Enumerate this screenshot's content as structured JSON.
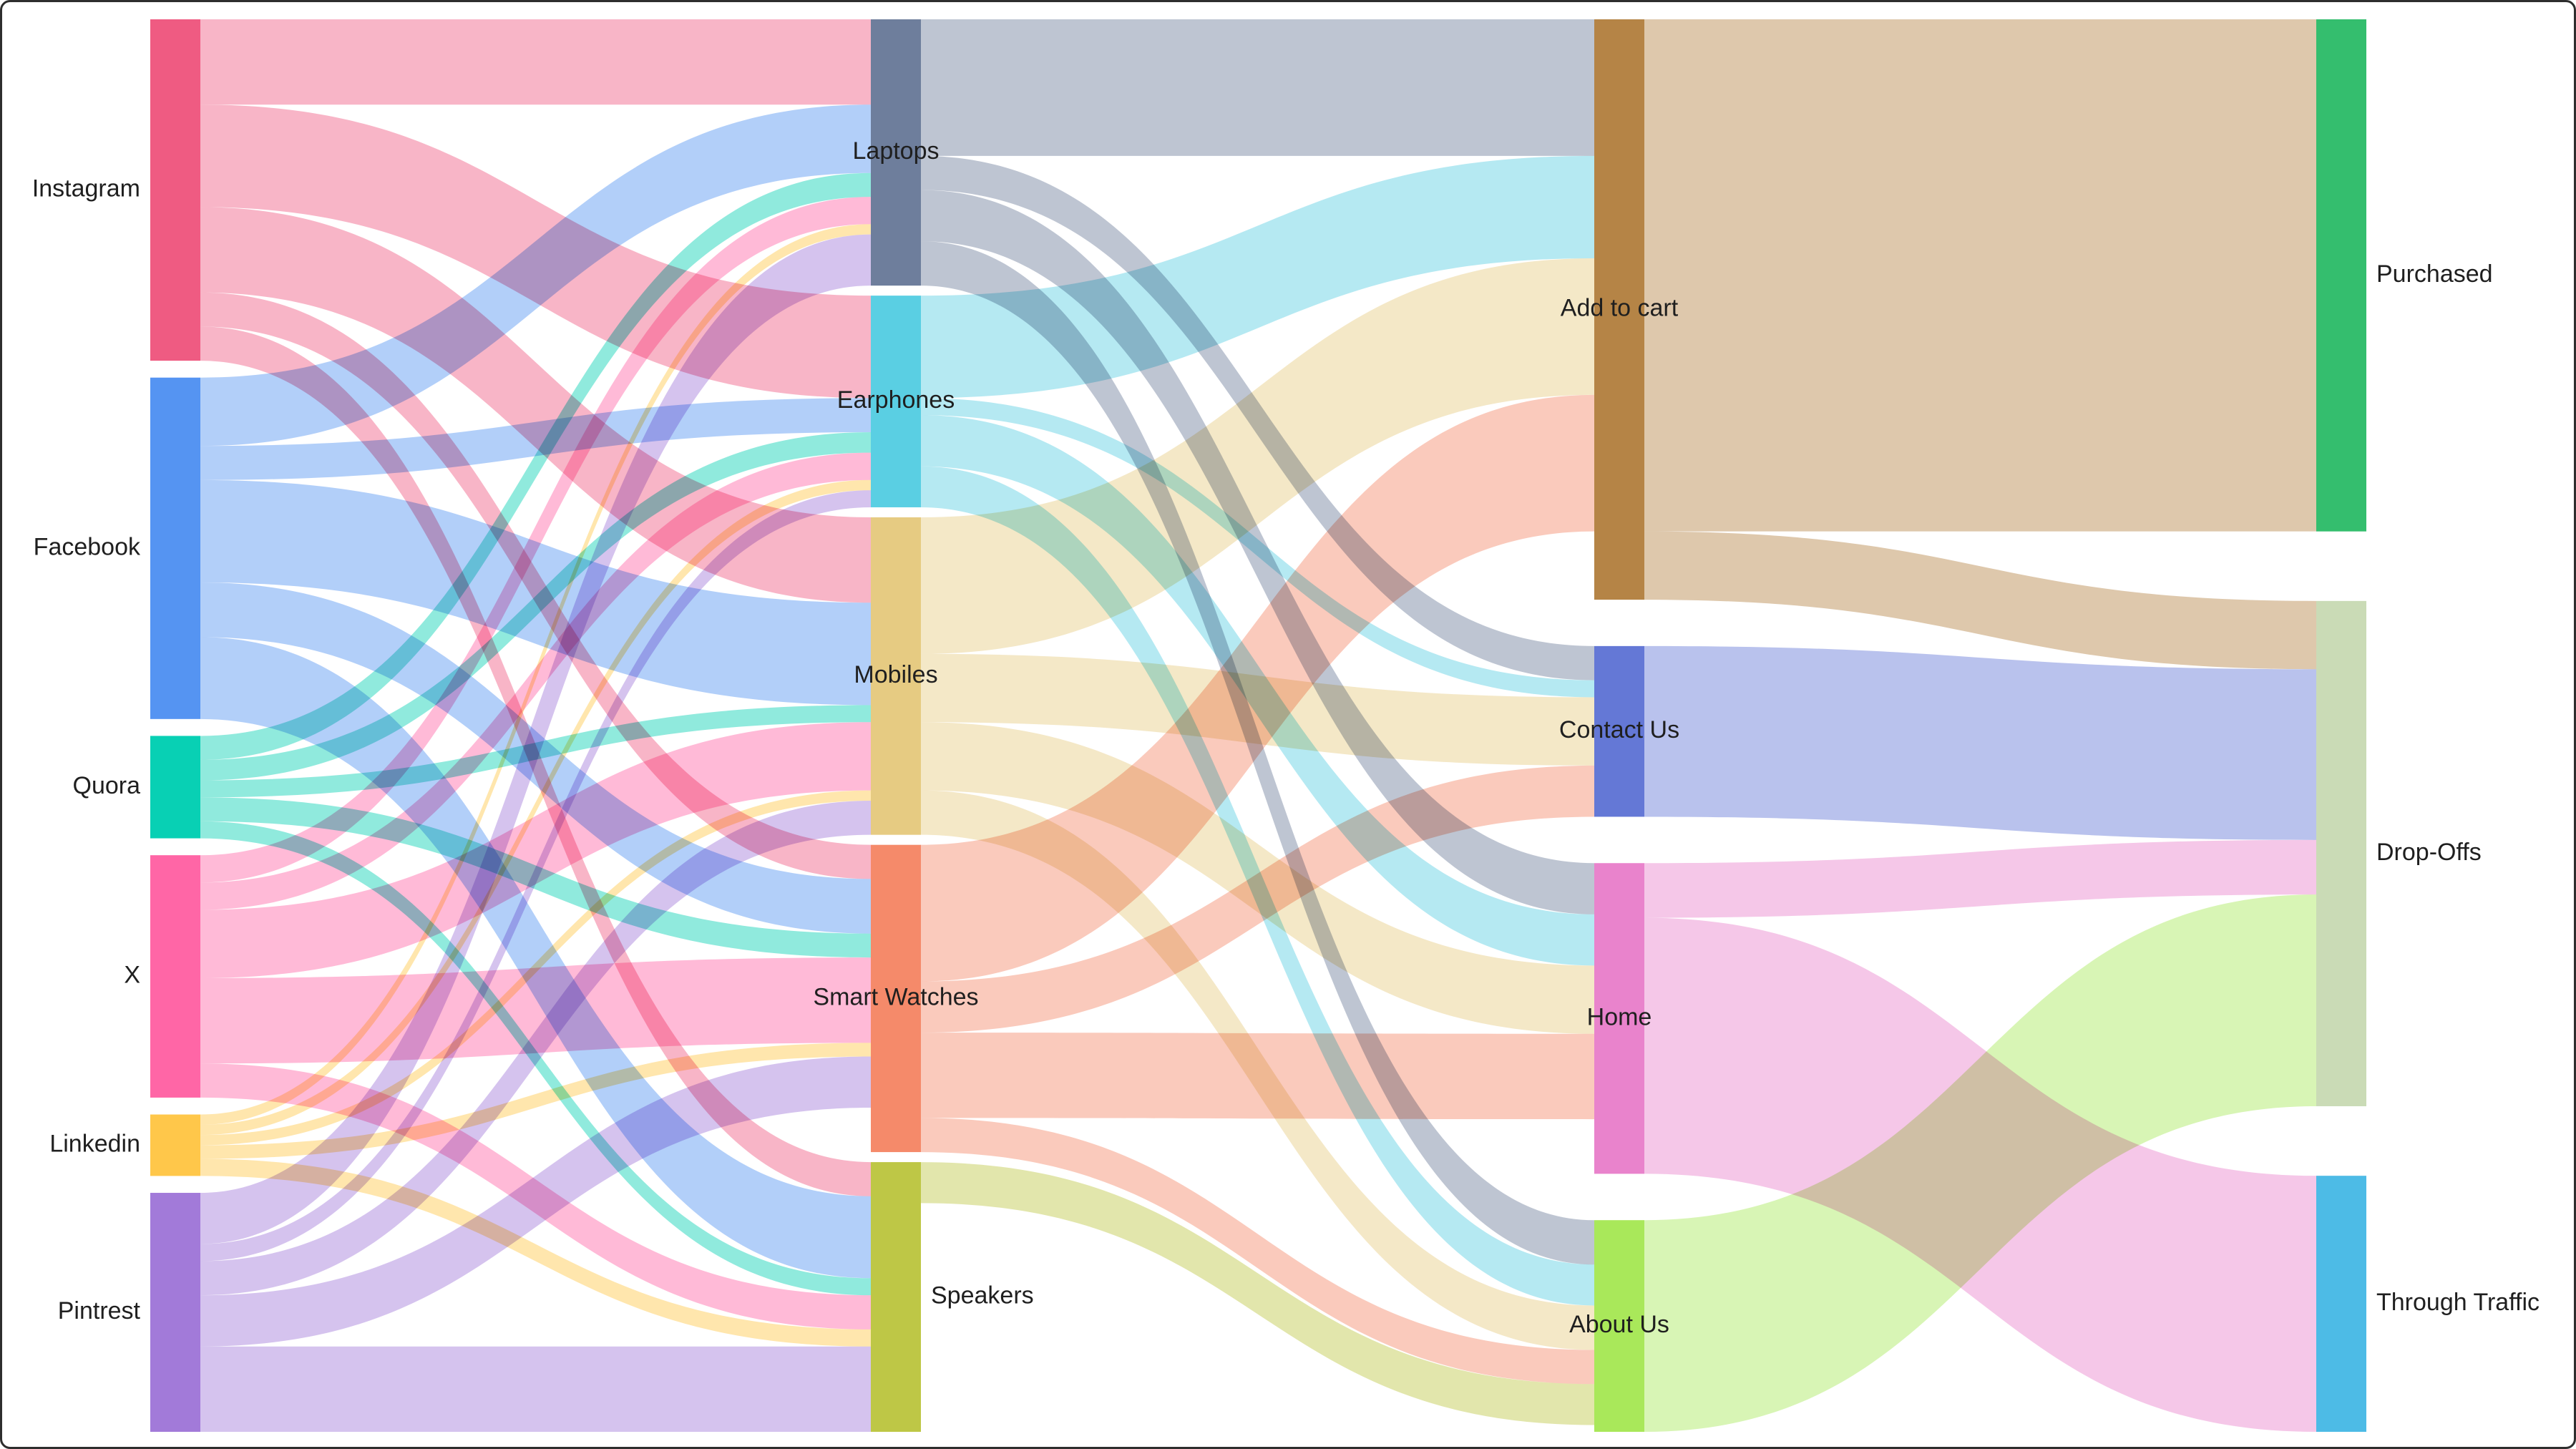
{
  "chart_data": {
    "type": "sankey",
    "title": "",
    "nodes": [
      {
        "id": "instagram",
        "name": "Instagram",
        "column": 0,
        "color": "#EF5B82"
      },
      {
        "id": "facebook",
        "name": "Facebook",
        "column": 0,
        "color": "#5594F2"
      },
      {
        "id": "quora",
        "name": "Quora",
        "column": 0,
        "color": "#08D0B4"
      },
      {
        "id": "x",
        "name": "X",
        "column": 0,
        "color": "#FF66A6"
      },
      {
        "id": "linkedin",
        "name": "Linkedin",
        "column": 0,
        "color": "#FFC74A"
      },
      {
        "id": "pintrest",
        "name": "Pintrest",
        "column": 0,
        "color": "#A27AD9"
      },
      {
        "id": "laptops",
        "name": "Laptops",
        "column": 1,
        "color": "#6E7E9C"
      },
      {
        "id": "earphones",
        "name": "Earphones",
        "column": 1,
        "color": "#5ACFE3"
      },
      {
        "id": "mobiles",
        "name": "Mobiles",
        "column": 1,
        "color": "#E6CB82"
      },
      {
        "id": "smartwatches",
        "name": "Smart Watches",
        "column": 1,
        "color": "#F58A6A"
      },
      {
        "id": "speakers",
        "name": "Speakers",
        "column": 1,
        "color": "#BEC746"
      },
      {
        "id": "addtocart",
        "name": "Add to cart",
        "column": 2,
        "color": "#B58446"
      },
      {
        "id": "contactus",
        "name": "Contact Us",
        "column": 2,
        "color": "#6478D6"
      },
      {
        "id": "home",
        "name": "Home",
        "column": 2,
        "color": "#E983CC"
      },
      {
        "id": "aboutus",
        "name": "About Us",
        "column": 2,
        "color": "#A9E85A"
      },
      {
        "id": "purchased",
        "name": "Purchased",
        "column": 3,
        "color": "#34BE6E"
      },
      {
        "id": "dropoffs",
        "name": "Drop-Offs",
        "column": 3,
        "color": "#CADBB6"
      },
      {
        "id": "throughtraffic",
        "name": "Through Traffic",
        "column": 3,
        "color": "#4DBBE6"
      }
    ],
    "links": [
      {
        "source": "instagram",
        "target": "laptops",
        "value": 25
      },
      {
        "source": "instagram",
        "target": "earphones",
        "value": 30
      },
      {
        "source": "instagram",
        "target": "mobiles",
        "value": 25
      },
      {
        "source": "instagram",
        "target": "smartwatches",
        "value": 10
      },
      {
        "source": "instagram",
        "target": "speakers",
        "value": 10
      },
      {
        "source": "facebook",
        "target": "laptops",
        "value": 20
      },
      {
        "source": "facebook",
        "target": "earphones",
        "value": 10
      },
      {
        "source": "facebook",
        "target": "mobiles",
        "value": 30
      },
      {
        "source": "facebook",
        "target": "smartwatches",
        "value": 16
      },
      {
        "source": "facebook",
        "target": "speakers",
        "value": 24
      },
      {
        "source": "quora",
        "target": "laptops",
        "value": 7
      },
      {
        "source": "quora",
        "target": "earphones",
        "value": 6
      },
      {
        "source": "quora",
        "target": "mobiles",
        "value": 5
      },
      {
        "source": "quora",
        "target": "smartwatches",
        "value": 7
      },
      {
        "source": "quora",
        "target": "speakers",
        "value": 5
      },
      {
        "source": "x",
        "target": "laptops",
        "value": 8
      },
      {
        "source": "x",
        "target": "earphones",
        "value": 8
      },
      {
        "source": "x",
        "target": "mobiles",
        "value": 20
      },
      {
        "source": "x",
        "target": "smartwatches",
        "value": 25
      },
      {
        "source": "x",
        "target": "speakers",
        "value": 10
      },
      {
        "source": "linkedin",
        "target": "laptops",
        "value": 3
      },
      {
        "source": "linkedin",
        "target": "earphones",
        "value": 3
      },
      {
        "source": "linkedin",
        "target": "mobiles",
        "value": 3
      },
      {
        "source": "linkedin",
        "target": "smartwatches",
        "value": 4
      },
      {
        "source": "linkedin",
        "target": "speakers",
        "value": 5
      },
      {
        "source": "pintrest",
        "target": "laptops",
        "value": 15
      },
      {
        "source": "pintrest",
        "target": "earphones",
        "value": 5
      },
      {
        "source": "pintrest",
        "target": "mobiles",
        "value": 10
      },
      {
        "source": "pintrest",
        "target": "smartwatches",
        "value": 15
      },
      {
        "source": "pintrest",
        "target": "speakers",
        "value": 25
      },
      {
        "source": "laptops",
        "target": "addtocart",
        "value": 40
      },
      {
        "source": "laptops",
        "target": "contactus",
        "value": 10
      },
      {
        "source": "laptops",
        "target": "home",
        "value": 15
      },
      {
        "source": "laptops",
        "target": "aboutus",
        "value": 13
      },
      {
        "source": "earphones",
        "target": "addtocart",
        "value": 30
      },
      {
        "source": "earphones",
        "target": "contactus",
        "value": 5
      },
      {
        "source": "earphones",
        "target": "home",
        "value": 15
      },
      {
        "source": "earphones",
        "target": "aboutus",
        "value": 12
      },
      {
        "source": "mobiles",
        "target": "addtocart",
        "value": 40
      },
      {
        "source": "mobiles",
        "target": "contactus",
        "value": 20
      },
      {
        "source": "mobiles",
        "target": "home",
        "value": 20
      },
      {
        "source": "mobiles",
        "target": "aboutus",
        "value": 13
      },
      {
        "source": "smartwatches",
        "target": "addtocart",
        "value": 40
      },
      {
        "source": "smartwatches",
        "target": "contactus",
        "value": 15
      },
      {
        "source": "smartwatches",
        "target": "home",
        "value": 25
      },
      {
        "source": "smartwatches",
        "target": "aboutus",
        "value": 10
      },
      {
        "source": "speakers",
        "target": "aboutus",
        "value": 12
      },
      {
        "source": "addtocart",
        "target": "purchased",
        "value": 150
      },
      {
        "source": "addtocart",
        "target": "dropoffs",
        "value": 20
      },
      {
        "source": "contactus",
        "target": "dropoffs",
        "value": 50
      },
      {
        "source": "home",
        "target": "dropoffs",
        "value": 16
      },
      {
        "source": "home",
        "target": "throughtraffic",
        "value": 75
      },
      {
        "source": "aboutus",
        "target": "dropoffs",
        "value": 62
      }
    ]
  }
}
